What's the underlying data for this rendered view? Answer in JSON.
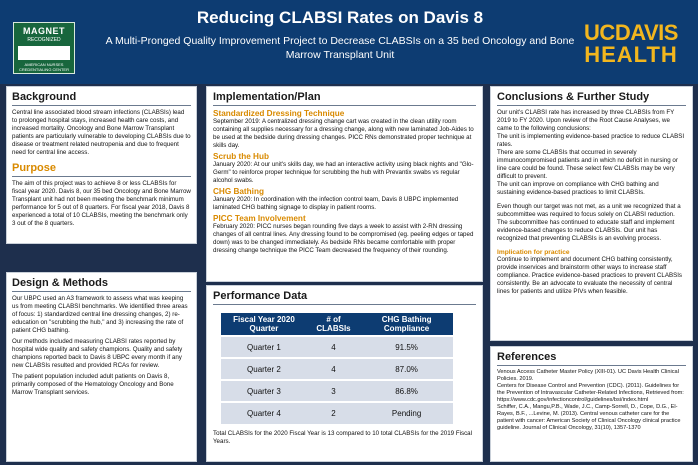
{
  "header": {
    "title": "Reducing CLABSI Rates on Davis 8",
    "subtitle": "A Multi-Pronged Quality Improvement Project to Decrease CLABSIs on a 35 bed Oncology and Bone Marrow Transplant Unit",
    "magnet_line1": "MAGNET",
    "magnet_line2": "RECOGNIZED",
    "magnet_line3": "AMERICAN NURSES CREDENTIALING CENTER",
    "logo_line1": "UCDAVIS",
    "logo_line2": "HEALTH",
    "colors": {
      "header_bg": "#0d3c72",
      "accent": "#f2b61e",
      "subhead": "#d98a00"
    }
  },
  "background": {
    "heading": "Background",
    "text": "Central line associated blood stream infections (CLABSIs) lead to prolonged hospital stays, increased health care costs, and increased mortality. Oncology and Bone Marrow Transplant patients are particularly vulnerable to developing CLABSIs due to disease or treatment related neutropenia and due to frequent need for central line access.",
    "purpose_heading": "Purpose",
    "purpose_text": "The aim of this project was to achieve 8 or less CLABSIs for fiscal year 2020. Davis 8, our 35 bed Oncology and Bone Marrow Transplant unit had not been meeting the benchmark minimum performance for 5 out of 8 quarters. For fiscal year 2018, Davis 8 experienced a total of 10 CLABSIs, meeting the benchmark only 3 out of the 8 quarters."
  },
  "design": {
    "heading": "Design & Methods",
    "p1": "Our UBPC used an A3 framework to assess what was keeping us from meeting CLABSI benchmarks. We identified three areas of focus: 1) standardized central line dressing changes, 2) re-education on \"scrubbing the hub,\" and 3) increasing the rate of patient CHG bathing.",
    "p2": "Our methods included measuring CLABSI rates reported by hospital wide quality and safety champions. Quality and safety champions reported back to Davis 8 UBPC every month if any new CLABSIs resulted and provided RCAs for review.",
    "p3": "The patient population included adult patients on Davis 8, primarily composed of the Hematology Oncology and Bone Marrow Transplant services."
  },
  "implementation": {
    "heading": "Implementation/Plan",
    "items": [
      {
        "title": "Standardized Dressing Technique",
        "text": "September 2019: A centralized dressing change cart was created in the clean utility room containing all supplies necessary for a dressing change, along with new laminated Job-Aides to be used at the bedside during dressing changes. PICC RNs demonstrated proper technique at skills day."
      },
      {
        "title": "Scrub the Hub",
        "text": "January 2020: At our unit's skills day, we had an interactive activity using black nights and \"Glo-Germ\" to reinforce proper technique for scrubbing the hub with Prevantix swabs vs regular alcohol swabs."
      },
      {
        "title": "CHG Bathing",
        "text": "January 2020: In coordination with the infection control team, Davis 8 UBPC implemented laminated CHG bathing signage to display in patient rooms."
      },
      {
        "title": "PICC Team Involvement",
        "text": "February 2020: PICC nurses began rounding five days a week to assist with 2-RN dressing changes of all central lines. Any dressing found to be compromised (eg. peeling edges or taped down) was to be changed immediately. As bedside RNs became comfortable with proper dressing change technique the PICC Team decreased the frequency of their rounding."
      }
    ]
  },
  "performance": {
    "heading": "Performance Data",
    "columns": [
      "Fiscal Year 2020 Quarter",
      "# of CLABSIs",
      "CHG Bathing Compliance"
    ],
    "rows": [
      [
        "Quarter 1",
        "4",
        "91.5%"
      ],
      [
        "Quarter 2",
        "4",
        "87.0%"
      ],
      [
        "Quarter 3",
        "3",
        "86.8%"
      ],
      [
        "Quarter 4",
        "2",
        "Pending"
      ]
    ],
    "footer": "Total CLABSIs for the 2020 Fiscal Year is 13 compared to 10 total CLABSIs for the 2019 Fiscal Years."
  },
  "conclusions": {
    "heading": "Conclusions & Further Study",
    "p1": "Our unit's CLABSI rate has increased by three CLABSIs from FY 2019 to FY 2020. Upon review of the Root Cause Analyses, we came to the following conclusions:",
    "p2": "The unit is implementing evidence-based practice to reduce CLABSI rates.",
    "p3": "There are some CLABSIs that occurred in severely immunocompromised patients and in which no deficit in nursing or line care could be found. These select few CLABSIs may be very difficult to prevent.",
    "p4": "The unit can improve on compliance with CHG bathing and sustaining evidence-based practices to limit CLABSIs.",
    "p5": "Even though our target was not met, as a unit we recognized that a subcommittee was required to focus solely on CLABSI reduction. The subcommittee has continued to educate staff and implement evidence-based changes to reduce CLABSIs. Our unit has recognized that preventing CLABSIs is an evolving process.",
    "impl_heading": "Implication for practice",
    "impl_text": "Continue to implement and document CHG bathing consistently, provide inservices and brainstorm other ways to increase staff compliance. Practice evidence-based practices to prevent CLABSIs consistently. Be an advocate to evaluate the necessity of central lines for patients and utilize PIVs when feasible."
  },
  "references": {
    "heading": "References",
    "items": [
      "Venous Access Catheter Master Policy (XIII-01). UC Davis Health Clinical Policies. 2019.",
      "Centers for Disease Control and Prevention (CDC). (2011). Guidelines for the Prevention of Intravascular Catheter-Related Infections, Retrieved from: https://www.cdc.gov/infectioncontrol/guidelines/bsi/index.html",
      "Schiffer, C.A., Mangu,P.B., Wade, J.C., Camp-Sorrell, D., Cope, D.G., El-Rayes, B.F., ...Levine, M. (2013). Central venous catheter care for the patient with cancer: American Society of Clinical Oncology clinical practice guideline. Journal of Clinical Oncology, 31(10), 1357-1370"
    ]
  }
}
